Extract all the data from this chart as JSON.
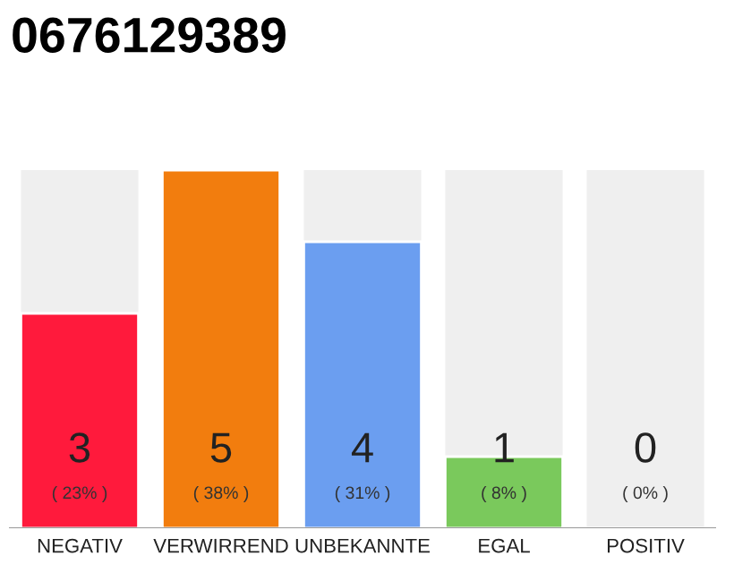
{
  "chart_data": {
    "type": "bar",
    "title": "0676129389",
    "categories": [
      "NEGATIV",
      "VERWIRREND",
      "UNBEKANNTE",
      "EGAL",
      "POSITIV"
    ],
    "values": [
      3,
      5,
      4,
      1,
      0
    ],
    "colors": [
      "#ff1a3c",
      "#f27d0e",
      "#6b9ef0",
      "#7ac95c",
      null
    ],
    "ylim": [
      0,
      5
    ],
    "tick_labels": "x",
    "grid": false,
    "data_labels": true,
    "annotations": [
      "( 23% )",
      "( 38% )",
      "( 31% )",
      "( 8% )",
      "( 0% )"
    ]
  }
}
